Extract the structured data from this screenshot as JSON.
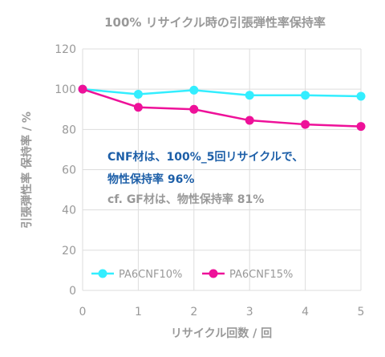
{
  "chart_data": {
    "type": "line",
    "title": "100% リサイクル時の引張弾性率保持率",
    "xlabel": "リサイクル回数 / 回",
    "ylabel": "引張弾性率 保持率 / %",
    "x": [
      0,
      1,
      2,
      3,
      4,
      5
    ],
    "xlim": [
      0,
      5
    ],
    "ylim": [
      0,
      120
    ],
    "yticks": [
      0,
      20,
      40,
      60,
      80,
      100,
      120
    ],
    "grid": true,
    "legend_position": "bottom-left",
    "series": [
      {
        "name": "PA6CNF10%",
        "color": "#33eeff",
        "values": [
          100,
          97.5,
          99.5,
          97,
          97,
          96.5
        ]
      },
      {
        "name": "PA6CNF15%",
        "color": "#ee1199",
        "values": [
          100,
          91,
          90,
          84.5,
          82.5,
          81.5
        ]
      }
    ],
    "annotations": [
      {
        "text": "CNF材は、100%_5回リサイクルで、",
        "color": "#1d5fa8"
      },
      {
        "text": "物性保持率 96%",
        "color": "#1d5fa8"
      },
      {
        "text": "cf. GF材は、物性保持率 81%",
        "color": "#999999"
      }
    ]
  }
}
